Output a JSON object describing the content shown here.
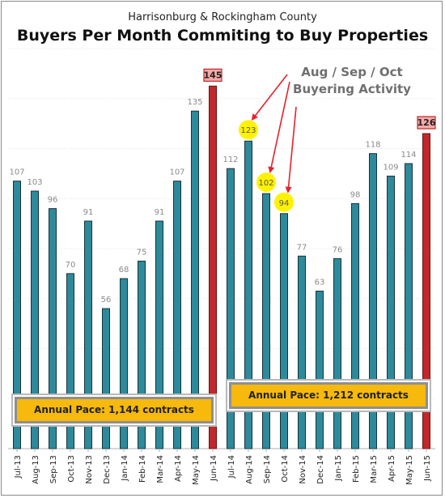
{
  "header": {
    "subtitle": "Harrisonburg & Rockingham County",
    "title": "Buyers Per Month Commiting to Buy Properties"
  },
  "callout": {
    "line1": "Aug / Sep / Oct",
    "line2": "Buyering Activity"
  },
  "pace": {
    "first": "Annual Pace: 1,144 contracts",
    "second": "Annual Pace: 1,212 contracts"
  },
  "colors": {
    "bar": "#2e8a9b",
    "bar_outline": "#15333c",
    "highlight_bar": "#c0282b",
    "highlight_label_bg": "#f4aaa8",
    "highlight_label_border": "#c0282b",
    "yellow_marker": "#fff200",
    "arrow": "#e8202a",
    "pace_bg": "#f6b90c",
    "value_label": "#8a8a8a"
  },
  "chart_data": {
    "type": "bar",
    "title": "Buyers Per Month Commiting to Buy Properties",
    "subtitle": "Harrisonburg & Rockingham County",
    "xlabel": "",
    "ylabel": "",
    "ylim": [
      0,
      160
    ],
    "grid": true,
    "categories": [
      "Jul-13",
      "Aug-13",
      "Sep-13",
      "Oct-13",
      "Nov-13",
      "Dec-13",
      "Jan-14",
      "Feb-14",
      "Mar-14",
      "Apr-14",
      "May-14",
      "Jun-14",
      "Jul-14",
      "Aug-14",
      "Sep-14",
      "Oct-14",
      "Nov-14",
      "Dec-14",
      "Jan-15",
      "Feb-15",
      "Mar-15",
      "Apr-15",
      "May-15",
      "Jun-15"
    ],
    "values": [
      107,
      103,
      96,
      70,
      91,
      56,
      68,
      75,
      91,
      107,
      135,
      145,
      112,
      123,
      102,
      94,
      77,
      63,
      76,
      98,
      118,
      109,
      114,
      126
    ],
    "highlighted": [
      "Jun-14",
      "Jun-15"
    ],
    "circled": [
      "Aug-14",
      "Sep-14",
      "Oct-14"
    ],
    "labels": [
      "107",
      "103",
      "96",
      "70",
      "91",
      "56",
      "68",
      "75",
      "91",
      "107",
      "135",
      "145",
      "112",
      "123",
      "102",
      "94",
      "77",
      "63",
      "76",
      "98",
      "118",
      "109",
      "114",
      "126"
    ]
  }
}
